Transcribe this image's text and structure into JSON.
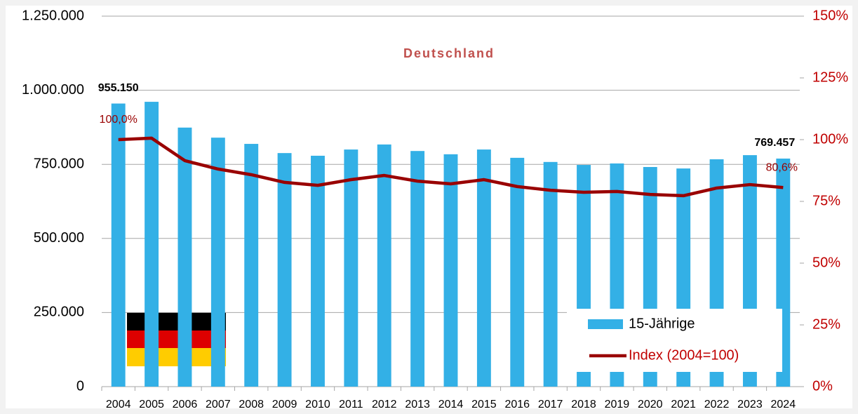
{
  "chart_data": {
    "type": "bar",
    "title": "Deutschland",
    "categories": [
      "2004",
      "2005",
      "2006",
      "2007",
      "2008",
      "2009",
      "2010",
      "2011",
      "2012",
      "2013",
      "2014",
      "2015",
      "2016",
      "2017",
      "2018",
      "2019",
      "2020",
      "2021",
      "2022",
      "2023",
      "2024"
    ],
    "series": [
      {
        "name": "15-Jährige",
        "type": "bar",
        "color": "#33b0e6",
        "values": [
          955150,
          961000,
          874000,
          840000,
          819000,
          788000,
          779000,
          800000,
          817000,
          795000,
          784000,
          800000,
          772000,
          758000,
          748000,
          753000,
          741000,
          736000,
          767000,
          781000,
          769457
        ],
        "value_labels": [
          "955.150",
          null,
          null,
          null,
          null,
          null,
          null,
          null,
          null,
          null,
          null,
          null,
          null,
          null,
          null,
          null,
          null,
          null,
          null,
          null,
          "769.457"
        ]
      },
      {
        "name": "Index (2004=100)",
        "type": "line",
        "axis": "y2",
        "color": "#990000",
        "values": [
          100,
          100.6,
          91.5,
          88.1,
          85.8,
          82.7,
          81.5,
          83.8,
          85.5,
          83.2,
          82.1,
          83.8,
          81,
          79.5,
          78.7,
          79,
          77.8,
          77.3,
          80.4,
          81.8,
          80.6
        ],
        "value_labels": [
          "100,0%",
          null,
          null,
          null,
          null,
          null,
          null,
          null,
          null,
          null,
          null,
          null,
          null,
          null,
          null,
          null,
          null,
          null,
          null,
          null,
          "80,6%"
        ]
      }
    ],
    "ylim": [
      0,
      1250000
    ],
    "yticks": [
      0,
      {
        "value": 250000,
        "label": "250.000"
      },
      {
        "value": 500000,
        "label": "500.000"
      },
      {
        "value": 750000,
        "label": "750.000"
      },
      {
        "value": 1000000,
        "label": "1.000.000"
      },
      {
        "value": 1250000,
        "label": "1.250.000"
      }
    ],
    "y2lim": [
      0,
      150
    ],
    "y2ticks": [
      {
        "value": 0,
        "label": "0%"
      },
      {
        "value": 25,
        "label": "25%"
      },
      {
        "value": 50,
        "label": "50%"
      },
      {
        "value": 75,
        "label": "75%"
      },
      {
        "value": 100,
        "label": "100%"
      },
      {
        "value": 125,
        "label": "125%"
      },
      {
        "value": 150,
        "label": "150%"
      }
    ],
    "grid": true,
    "legend": "lower right"
  }
}
